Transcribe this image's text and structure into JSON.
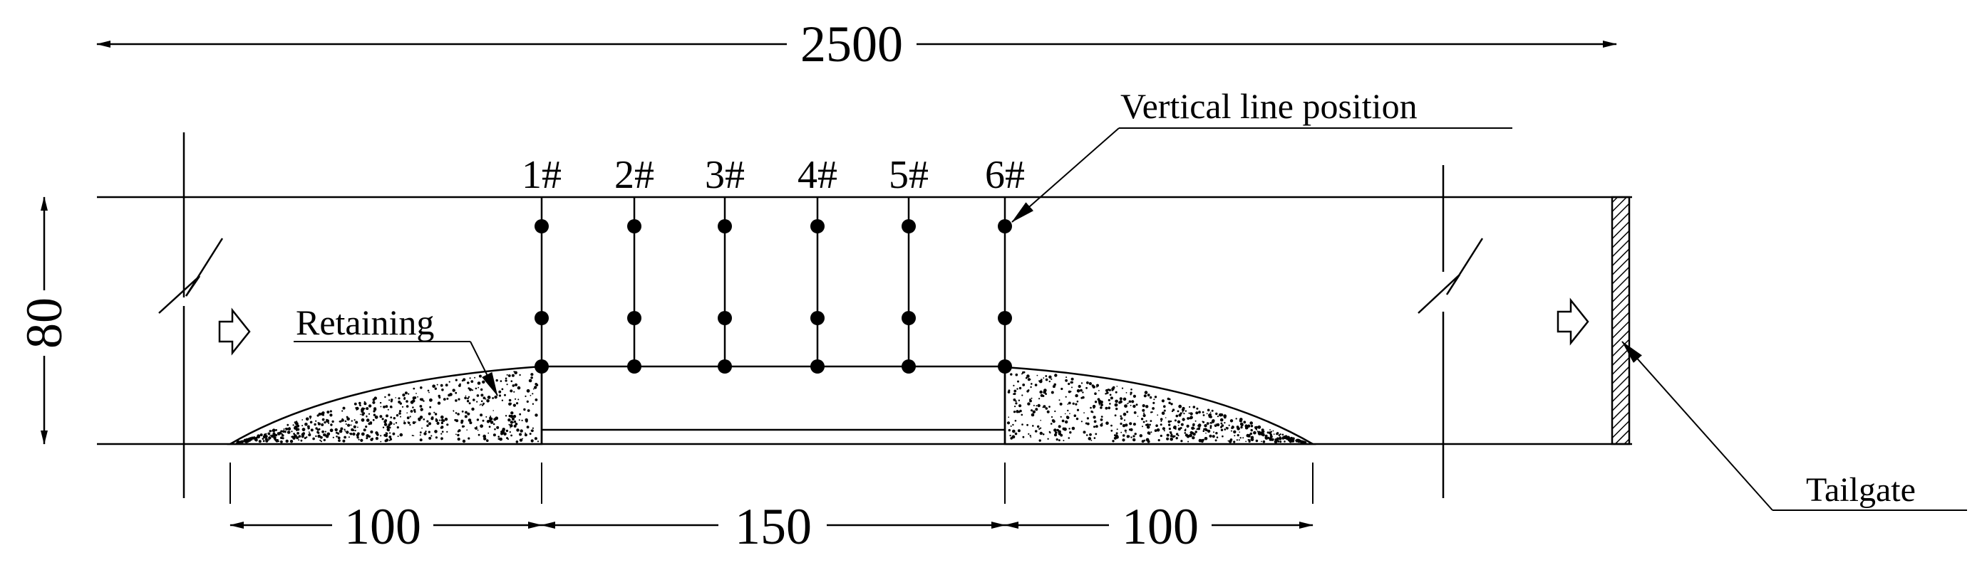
{
  "dimensions": {
    "total_length": "2500",
    "height": "80",
    "left_section": "100",
    "middle_section": "150",
    "right_section": "100"
  },
  "labels": {
    "vertical_line_position": "Vertical line position",
    "retaining": "Retaining",
    "tailgate": "Tailgate"
  },
  "vertical_lines": [
    "1#",
    "2#",
    "3#",
    "4#",
    "5#",
    "6#"
  ],
  "colors": {
    "line": "#000000",
    "background": "#ffffff"
  }
}
